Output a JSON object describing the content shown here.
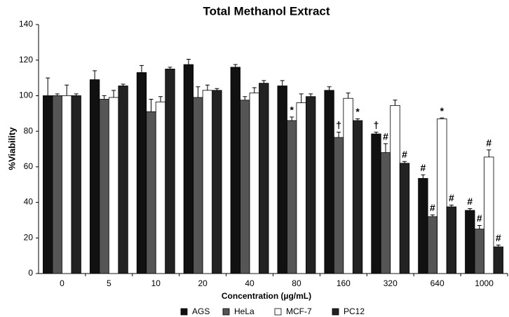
{
  "chart_data": {
    "type": "bar",
    "title": "Total Methanol Extract",
    "x_label": "Concentration (µg/mL)",
    "y_label": "%Viability",
    "categories": [
      "0",
      "5",
      "10",
      "20",
      "40",
      "80",
      "160",
      "320",
      "640",
      "1000"
    ],
    "series": [
      {
        "name": "AGS",
        "color": "#111111",
        "values": [
          100,
          109,
          113,
          117.5,
          116,
          105.5,
          103,
          78.5,
          53.5,
          35.5
        ],
        "errors": [
          10,
          5,
          4,
          3,
          1.5,
          3,
          2,
          1,
          2,
          1
        ],
        "annotations": [
          null,
          null,
          null,
          null,
          null,
          null,
          null,
          "†",
          "#",
          "#"
        ]
      },
      {
        "name": "HeLa",
        "color": "#555555",
        "values": [
          100,
          98,
          91,
          99,
          97.5,
          86,
          76.5,
          68,
          32,
          25
        ],
        "errors": [
          1,
          2,
          7,
          6,
          2,
          2,
          3,
          5,
          1,
          2
        ],
        "annotations": [
          null,
          null,
          null,
          null,
          null,
          "*",
          "†",
          "#",
          "#",
          "#"
        ]
      },
      {
        "name": "MCF-7",
        "color": "#ffffff",
        "values": [
          100,
          99,
          96.5,
          103,
          101.5,
          96,
          98.5,
          94.5,
          87,
          65.5
        ],
        "errors": [
          6,
          4,
          3,
          3,
          3,
          5,
          3,
          3,
          0.5,
          4
        ],
        "annotations": [
          null,
          null,
          null,
          null,
          null,
          null,
          null,
          null,
          "*",
          "#"
        ]
      },
      {
        "name": "PC12",
        "color": "#222222",
        "values": [
          100,
          105.5,
          115,
          103,
          107,
          99.5,
          86,
          62,
          37.5,
          15
        ],
        "errors": [
          1,
          1,
          1,
          1,
          1.5,
          1.5,
          1,
          1,
          1,
          1
        ],
        "annotations": [
          null,
          null,
          null,
          null,
          null,
          null,
          "*",
          "#",
          "#",
          "#"
        ]
      }
    ],
    "ylim": [
      0,
      140
    ],
    "yticks": [
      0,
      20,
      40,
      60,
      80,
      100,
      120,
      140
    ],
    "grid": false,
    "legend": "bottom"
  }
}
